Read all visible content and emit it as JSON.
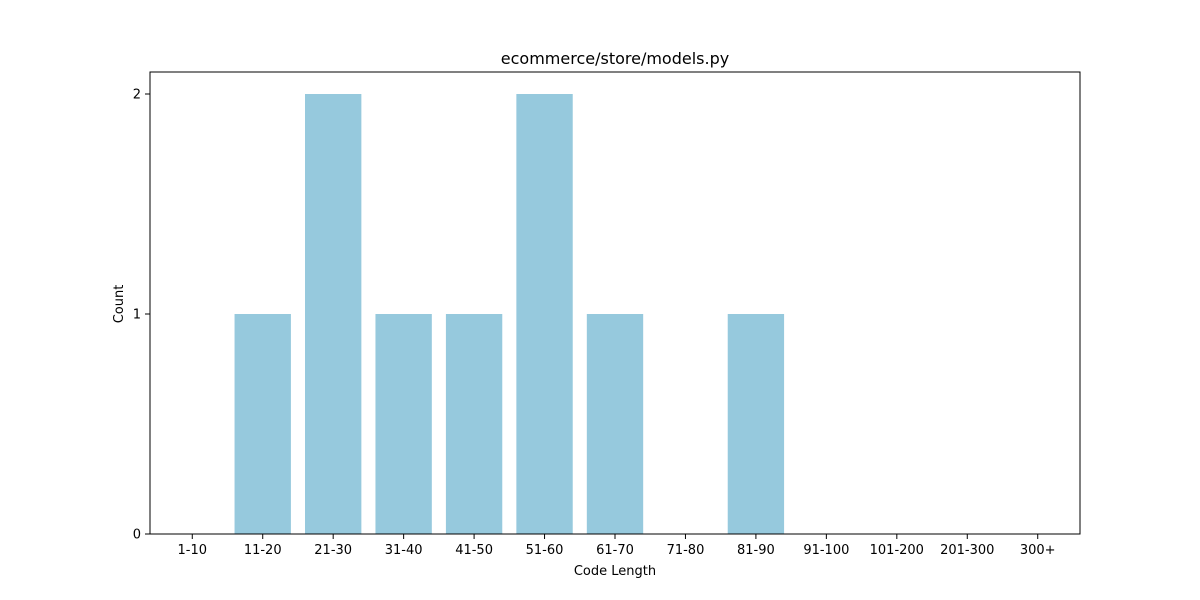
{
  "chart_data": {
    "type": "bar",
    "title": "ecommerce/store/models.py",
    "xlabel": "Code Length",
    "ylabel": "Count",
    "categories": [
      "1-10",
      "11-20",
      "21-30",
      "31-40",
      "41-50",
      "51-60",
      "61-70",
      "71-80",
      "81-90",
      "91-100",
      "101-200",
      "201-300",
      "300+"
    ],
    "values": [
      0,
      1,
      2,
      1,
      1,
      2,
      1,
      0,
      1,
      0,
      0,
      0,
      0
    ],
    "ylim": [
      0,
      2.1
    ],
    "yticks": [
      0,
      1,
      2
    ],
    "grid": false,
    "bar_color": "#96c9dd"
  }
}
